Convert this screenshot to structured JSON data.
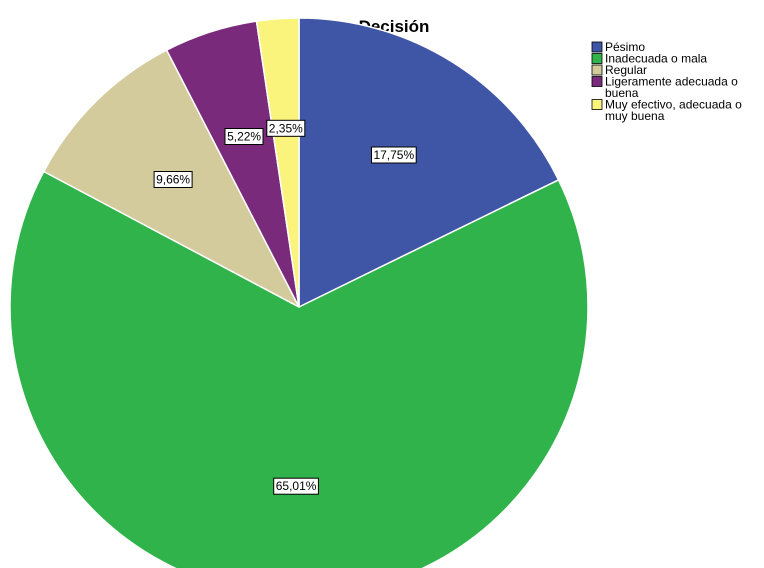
{
  "chart_data": {
    "type": "pie",
    "title": "Decisión",
    "legend_position": "top-right",
    "slices": [
      {
        "name": "Pésimo",
        "legend_lines": [
          "Pésimo"
        ],
        "value": 17.75,
        "label": "17,75%",
        "color": "#3f55a6"
      },
      {
        "name": "Inadecuada o mala",
        "legend_lines": [
          "Inadecuada o mala"
        ],
        "value": 65.01,
        "label": "65,01%",
        "color": "#2fb34a"
      },
      {
        "name": "Regular",
        "legend_lines": [
          "Regular"
        ],
        "value": 9.66,
        "label": "9,66%",
        "color": "#d3cb9b"
      },
      {
        "name": "Ligeramente adecuada o buena",
        "legend_lines": [
          "Ligeramente adecuada o",
          "buena"
        ],
        "value": 5.22,
        "label": "5,22%",
        "color": "#7a2a7b"
      },
      {
        "name": "Muy efectivo, adecuada o muy buena",
        "legend_lines": [
          "Muy efectivo, adecuada o",
          "muy buena"
        ],
        "value": 2.35,
        "label": "2,35%",
        "color": "#fbf47c"
      }
    ]
  }
}
